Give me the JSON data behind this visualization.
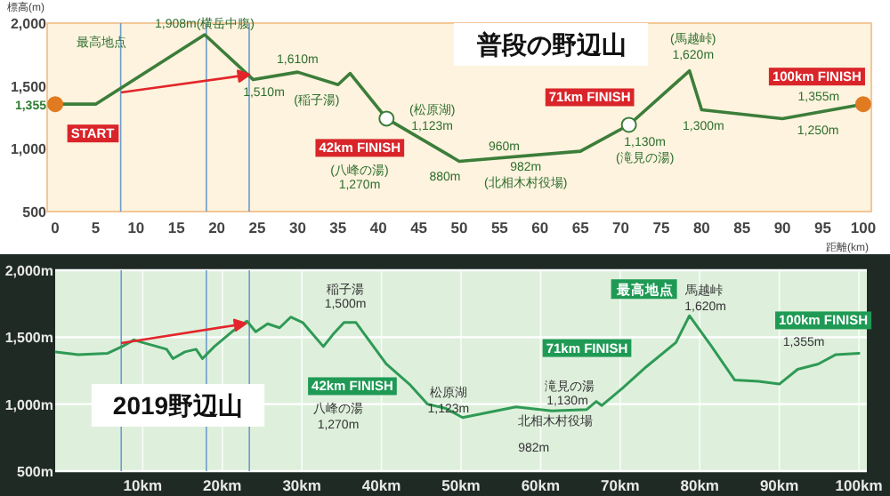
{
  "chart_data": [
    {
      "type": "line",
      "title": "普段の野辺山",
      "xlabel": "距離(km)",
      "ylabel": "標高(m)",
      "x": [
        0,
        5,
        18.5,
        24.5,
        30,
        35,
        36.5,
        41,
        50,
        65,
        71,
        78.5,
        80,
        90,
        100
      ],
      "series": [
        {
          "color": "#3c7d3a",
          "values": [
            1355,
            1355,
            1908,
            1550,
            1610,
            1510,
            1600,
            1240,
            900,
            980,
            1190,
            1620,
            1310,
            1240,
            1355
          ]
        }
      ],
      "ref_lines": [
        {
          "axis": "x",
          "value": 8.1,
          "color": "#6a9ccc"
        },
        {
          "axis": "x",
          "value": 18.7,
          "color": "#6a9ccc"
        },
        {
          "axis": "x",
          "value": 24,
          "color": "#6a9ccc"
        }
      ],
      "xlim": [
        -1,
        101
      ],
      "ylim": [
        500,
        2000
      ],
      "xticks": [
        0,
        5,
        10,
        15,
        20,
        25,
        30,
        35,
        40,
        45,
        50,
        55,
        60,
        65,
        70,
        75,
        80,
        85,
        90,
        95,
        100
      ],
      "yticks": [
        500,
        {
          "value": 1000,
          "label": "1,000"
        },
        {
          "value": 1355,
          "label": "1,355"
        },
        {
          "value": 1500,
          "label": "1,500"
        },
        {
          "value": 2000,
          "label": "2,000"
        }
      ],
      "annotations": [
        "最高地点",
        {
          "text": "1,908m(横岳中腹)",
          "x": 18.5,
          "y": 1908
        },
        {
          "text": "1,510m",
          "x": 24.5,
          "y": 1550
        },
        {
          "text": "1,610m",
          "x": 30,
          "y": 1610
        },
        {
          "text": "(稲子湯)",
          "x": 35,
          "y": 1510
        },
        {
          "text": "42km FINISH",
          "x": 41,
          "y": 1240
        },
        "(八峰の湯)",
        "1,270m",
        {
          "text": "(松原湖)",
          "x": 46,
          "y": 1050
        },
        {
          "text": "1,123m",
          "x": 46,
          "y": 1050
        },
        {
          "text": "880m",
          "x": 50,
          "y": 900
        },
        {
          "text": "960m",
          "x": 56,
          "y": 915
        },
        {
          "text": "982m",
          "x": 60,
          "y": 940
        },
        {
          "text": "(北相木村役場)",
          "x": 60,
          "y": 940
        },
        {
          "text": "71km FINISH",
          "x": 71,
          "y": 1190
        },
        {
          "text": "1,130m",
          "x": 71,
          "y": 1190
        },
        {
          "text": "(滝見の湯)",
          "x": 71,
          "y": 1190
        },
        {
          "text": "(馬越峠)",
          "x": 78.5,
          "y": 1620
        },
        {
          "text": "1,620m",
          "x": 78.5,
          "y": 1620
        },
        {
          "text": "1,300m",
          "x": 80,
          "y": 1310
        },
        {
          "text": "1,250m",
          "x": 90,
          "y": 1240
        },
        {
          "text": "100km FINISH",
          "x": 100,
          "y": 1355
        },
        {
          "text": "1,355m",
          "x": 100,
          "y": 1355
        },
        {
          "text": "START",
          "x": 0,
          "y": 1355
        }
      ]
    },
    {
      "type": "line",
      "title": "2019野辺山",
      "grid": true,
      "x": [
        -0.9,
        1.9,
        5.6,
        7.4,
        8.9,
        10,
        13,
        13.8,
        15.3,
        16.7,
        17.5,
        19,
        21.2,
        23.1,
        24.2,
        25.7,
        27.2,
        28.6,
        30.1,
        32.7,
        33.9,
        35.3,
        36.8,
        40.6,
        43.5,
        45.8,
        48,
        50.2,
        56.9,
        61.4,
        65.8,
        67,
        67.7,
        70.3,
        73.3,
        77,
        78.7,
        81.5,
        84.4,
        87.4,
        90,
        92.3,
        94.9,
        97.1,
        100
      ],
      "series": [
        {
          "color": "#2f9a55",
          "values": [
            1390,
            1370,
            1380,
            1430,
            1480,
            1460,
            1410,
            1340,
            1390,
            1410,
            1340,
            1430,
            1540,
            1620,
            1540,
            1600,
            1570,
            1650,
            1610,
            1430,
            1520,
            1610,
            1610,
            1300,
            1150,
            1000,
            970,
            900,
            980,
            950,
            960,
            1020,
            990,
            1120,
            1280,
            1460,
            1660,
            1430,
            1180,
            1170,
            1150,
            1260,
            1300,
            1370,
            1380
          ]
        }
      ],
      "ref_lines": [
        {
          "axis": "x",
          "value": 7.3,
          "color": "#6a9ccc"
        },
        {
          "axis": "x",
          "value": 18,
          "color": "#6a9ccc"
        },
        {
          "axis": "x",
          "value": 23.4,
          "color": "#6a9ccc"
        }
      ],
      "xlim": [
        -1,
        101
      ],
      "ylim": [
        500,
        2000
      ],
      "xticks": [
        {
          "value": 10,
          "label": "10km"
        },
        {
          "value": 20,
          "label": "20km"
        },
        {
          "value": 30,
          "label": "30km"
        },
        {
          "value": 40,
          "label": "40km"
        },
        {
          "value": 50,
          "label": "50km"
        },
        {
          "value": 60,
          "label": "60km"
        },
        {
          "value": 70,
          "label": "70km"
        },
        {
          "value": 80,
          "label": "80km"
        },
        {
          "value": 90,
          "label": "90km"
        },
        {
          "value": 100,
          "label": "100km"
        }
      ],
      "yticks": [
        {
          "value": 500,
          "label": "500m"
        },
        {
          "value": 1000,
          "label": "1,000m"
        },
        {
          "value": 1500,
          "label": "1,500m"
        },
        {
          "value": 2000,
          "label": "2,000m"
        }
      ],
      "annotations": [
        {
          "text": "稲子湯",
          "x": 33.9,
          "y": 1520
        },
        {
          "text": "1,500m",
          "x": 33.9,
          "y": 1520
        },
        {
          "text": "42km FINISH",
          "x": 40.6,
          "y": 1300
        },
        "八峰の湯",
        "1,270m",
        {
          "text": "松原湖",
          "x": 43.5,
          "y": 1150
        },
        {
          "text": "1,123m",
          "x": 43.5,
          "y": 1150
        },
        {
          "text": "北相木村役場",
          "x": 56.9,
          "y": 980
        },
        {
          "text": "982m",
          "x": 56.9,
          "y": 980
        },
        {
          "text": "71km FINISH",
          "x": 70.3,
          "y": 1120
        },
        {
          "text": "滝見の湯",
          "x": 70.3,
          "y": 1120
        },
        {
          "text": "1,130m",
          "x": 70.3,
          "y": 1120
        },
        {
          "text": "最高地点",
          "x": 78.7,
          "y": 1660
        },
        {
          "text": "馬越峠",
          "x": 78.7,
          "y": 1660
        },
        {
          "text": "1,620m",
          "x": 78.7,
          "y": 1660
        },
        {
          "text": "100km FINISH",
          "x": 100,
          "y": 1380
        },
        {
          "text": "1,355m",
          "x": 100,
          "y": 1380
        }
      ]
    }
  ]
}
